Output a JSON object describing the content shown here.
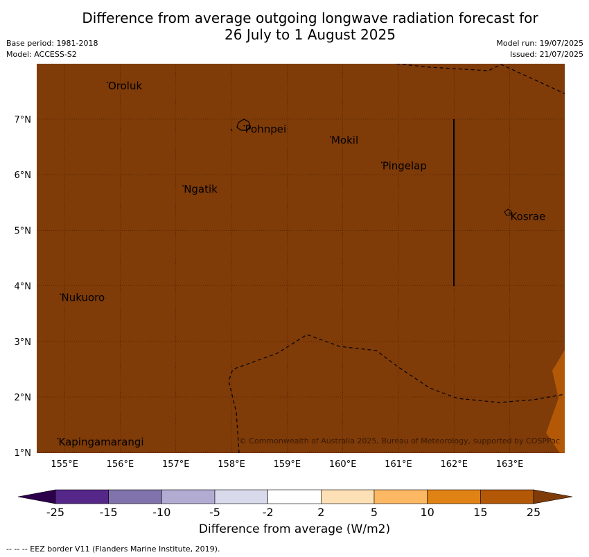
{
  "title_line1": "Difference from average outgoing longwave radiation forecast for",
  "title_line2": "26 July to 1 August 2025",
  "base_period": "Base period: 1981-2018",
  "model": "Model: ACCESS-S2",
  "model_run": "Model run: 19/07/2025",
  "issued": "Issued: 21/07/2025",
  "copyright": "© Commonwealth of Australia 2025, Bureau of Meteorology, supported by COSPPac",
  "colorbar_label": "Difference from average (W/m2)",
  "footnote": "--  --  -- EEZ border V11 (Flanders Marine Institute, 2019).",
  "colors": {
    "map_fill": "#7f3b08",
    "map_fill_light": "#b35806",
    "eez": "#000000"
  },
  "map": {
    "lon_ticks": [
      "155°E",
      "156°E",
      "157°E",
      "158°E",
      "159°E",
      "160°E",
      "161°E",
      "162°E",
      "163°E"
    ],
    "lat_ticks": [
      "7°N",
      "6°N",
      "5°N",
      "4°N",
      "3°N",
      "2°N",
      "1°N"
    ],
    "places": [
      {
        "name": "Oroluk",
        "lon": 155.77,
        "lat": 7.66
      },
      {
        "name": "Pohnpei",
        "lon": 158.23,
        "lat": 6.88
      },
      {
        "name": "Mokil",
        "lon": 159.78,
        "lat": 6.68
      },
      {
        "name": "Pingelap",
        "lon": 160.7,
        "lat": 6.22
      },
      {
        "name": "Ngatik",
        "lon": 157.13,
        "lat": 5.8
      },
      {
        "name": "Kosrae",
        "lon": 163.0,
        "lat": 5.31
      },
      {
        "name": "Nukuoro",
        "lon": 154.93,
        "lat": 3.85
      },
      {
        "name": "Kapingamarangi",
        "lon": 154.88,
        "lat": 1.25
      }
    ]
  },
  "colorbar": {
    "ticks": [
      "-25",
      "-15",
      "-10",
      "-5",
      "-2",
      "2",
      "5",
      "10",
      "15",
      "25"
    ],
    "colors": [
      "#2d004b",
      "#542788",
      "#8073ac",
      "#b2abd2",
      "#d8daeb",
      "#ffffff",
      "#fee0b6",
      "#fdb863",
      "#e08214",
      "#b35806",
      "#7f3b08"
    ]
  }
}
